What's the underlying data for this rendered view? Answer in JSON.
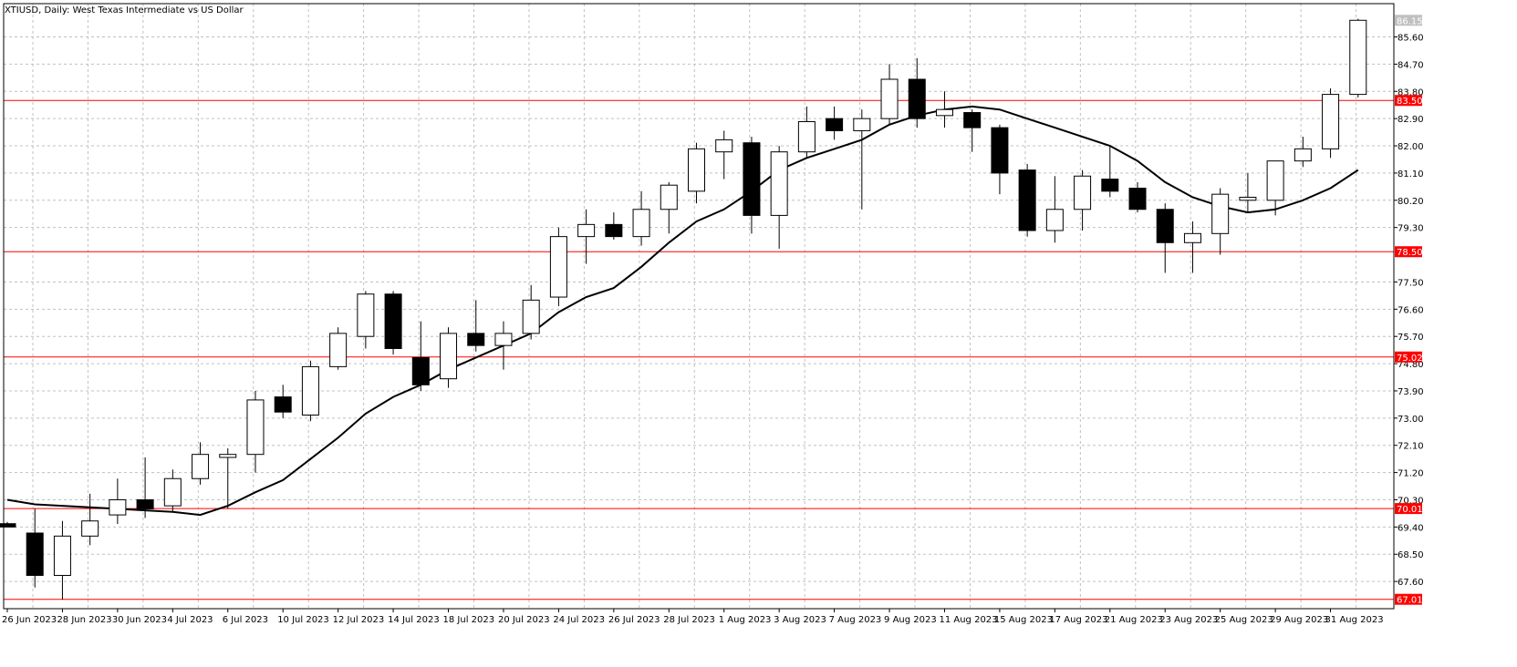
{
  "title": "XTIUSD, Daily:  West Texas Intermediate vs US Dollar",
  "colors": {
    "background": "#ffffff",
    "grid": "#c0c0c0",
    "candle_outline": "#000000",
    "bull_fill": "#ffffff",
    "bear_fill": "#000000",
    "ma_line": "#000000",
    "level_line": "#ff0000",
    "level_label_bg": "#ff0000",
    "current_label_bg": "#c0c0c0"
  },
  "chart_data": {
    "type": "candlestick",
    "symbol": "XTIUSD",
    "timeframe": "Daily",
    "ylim": [
      66.7,
      86.7
    ],
    "y_ticks": [
      "67.60",
      "68.50",
      "69.40",
      "70.30",
      "71.20",
      "72.10",
      "73.00",
      "73.90",
      "74.80",
      "75.70",
      "76.60",
      "77.50",
      "79.30",
      "80.20",
      "81.10",
      "82.00",
      "82.90",
      "83.80",
      "84.70",
      "85.60"
    ],
    "x_tick_labels": [
      {
        "i": 0,
        "label": "26 Jun 2023"
      },
      {
        "i": 2,
        "label": "28 Jun 2023"
      },
      {
        "i": 4,
        "label": "30 Jun 2023"
      },
      {
        "i": 6,
        "label": "4 Jul 2023"
      },
      {
        "i": 8,
        "label": "6 Jul 2023"
      },
      {
        "i": 10,
        "label": "10 Jul 2023"
      },
      {
        "i": 12,
        "label": "12 Jul 2023"
      },
      {
        "i": 14,
        "label": "14 Jul 2023"
      },
      {
        "i": 16,
        "label": "18 Jul 2023"
      },
      {
        "i": 18,
        "label": "20 Jul 2023"
      },
      {
        "i": 20,
        "label": "24 Jul 2023"
      },
      {
        "i": 22,
        "label": "26 Jul 2023"
      },
      {
        "i": 24,
        "label": "28 Jul 2023"
      },
      {
        "i": 26,
        "label": "1 Aug 2023"
      },
      {
        "i": 28,
        "label": "3 Aug 2023"
      },
      {
        "i": 30,
        "label": "7 Aug 2023"
      },
      {
        "i": 32,
        "label": "9 Aug 2023"
      },
      {
        "i": 34,
        "label": "11 Aug 2023"
      },
      {
        "i": 36,
        "label": "15 Aug 2023"
      },
      {
        "i": 38,
        "label": "17 Aug 2023"
      },
      {
        "i": 40,
        "label": "21 Aug 2023"
      },
      {
        "i": 42,
        "label": "23 Aug 2023"
      },
      {
        "i": 44,
        "label": "25 Aug 2023"
      },
      {
        "i": 46,
        "label": "29 Aug 2023"
      },
      {
        "i": 48,
        "label": "31 Aug 2023"
      }
    ],
    "candles": [
      {
        "o": 69.51,
        "h": 69.57,
        "l": 69.4,
        "c": 69.4
      },
      {
        "o": 69.2,
        "h": 70.0,
        "l": 67.4,
        "c": 67.8
      },
      {
        "o": 67.8,
        "h": 69.6,
        "l": 67.0,
        "c": 69.1
      },
      {
        "o": 69.1,
        "h": 70.5,
        "l": 68.8,
        "c": 69.6
      },
      {
        "o": 69.8,
        "h": 71.0,
        "l": 69.5,
        "c": 70.3
      },
      {
        "o": 70.3,
        "h": 71.7,
        "l": 69.7,
        "c": 70.0
      },
      {
        "o": 70.1,
        "h": 71.3,
        "l": 69.9,
        "c": 71.0
      },
      {
        "o": 71.0,
        "h": 72.2,
        "l": 70.8,
        "c": 71.8
      },
      {
        "o": 71.7,
        "h": 72.0,
        "l": 70.0,
        "c": 71.8
      },
      {
        "o": 71.8,
        "h": 73.9,
        "l": 71.2,
        "c": 73.6
      },
      {
        "o": 73.7,
        "h": 74.1,
        "l": 73.0,
        "c": 73.2
      },
      {
        "o": 73.1,
        "h": 74.9,
        "l": 72.9,
        "c": 74.7
      },
      {
        "o": 74.7,
        "h": 76.0,
        "l": 74.6,
        "c": 75.8
      },
      {
        "o": 75.7,
        "h": 77.2,
        "l": 75.3,
        "c": 77.1
      },
      {
        "o": 77.1,
        "h": 77.2,
        "l": 75.1,
        "c": 75.3
      },
      {
        "o": 75.0,
        "h": 76.2,
        "l": 73.9,
        "c": 74.1
      },
      {
        "o": 74.3,
        "h": 76.0,
        "l": 74.0,
        "c": 75.8
      },
      {
        "o": 75.8,
        "h": 76.9,
        "l": 75.2,
        "c": 75.4
      },
      {
        "o": 75.4,
        "h": 76.2,
        "l": 74.6,
        "c": 75.8
      },
      {
        "o": 75.8,
        "h": 77.4,
        "l": 75.6,
        "c": 76.9
      },
      {
        "o": 77.0,
        "h": 79.3,
        "l": 76.7,
        "c": 79.0
      },
      {
        "o": 79.0,
        "h": 79.9,
        "l": 78.1,
        "c": 79.4
      },
      {
        "o": 79.4,
        "h": 79.8,
        "l": 78.9,
        "c": 79.0
      },
      {
        "o": 79.0,
        "h": 80.5,
        "l": 78.7,
        "c": 79.9
      },
      {
        "o": 79.9,
        "h": 80.8,
        "l": 79.1,
        "c": 80.7
      },
      {
        "o": 80.5,
        "h": 82.1,
        "l": 80.1,
        "c": 81.9
      },
      {
        "o": 81.8,
        "h": 82.5,
        "l": 80.9,
        "c": 82.2
      },
      {
        "o": 82.1,
        "h": 82.3,
        "l": 79.1,
        "c": 79.7
      },
      {
        "o": 79.7,
        "h": 82.0,
        "l": 78.6,
        "c": 81.8
      },
      {
        "o": 81.8,
        "h": 83.3,
        "l": 81.6,
        "c": 82.8
      },
      {
        "o": 82.9,
        "h": 83.3,
        "l": 82.2,
        "c": 82.5
      },
      {
        "o": 82.5,
        "h": 83.2,
        "l": 79.9,
        "c": 82.9
      },
      {
        "o": 82.9,
        "h": 84.7,
        "l": 82.7,
        "c": 84.2
      },
      {
        "o": 84.2,
        "h": 84.9,
        "l": 82.6,
        "c": 82.9
      },
      {
        "o": 83.0,
        "h": 83.8,
        "l": 82.6,
        "c": 83.2
      },
      {
        "o": 83.1,
        "h": 83.2,
        "l": 81.8,
        "c": 82.6
      },
      {
        "o": 82.6,
        "h": 82.7,
        "l": 80.4,
        "c": 81.1
      },
      {
        "o": 81.2,
        "h": 81.4,
        "l": 79.0,
        "c": 79.2
      },
      {
        "o": 79.2,
        "h": 81.0,
        "l": 78.8,
        "c": 79.9
      },
      {
        "o": 79.9,
        "h": 81.2,
        "l": 79.2,
        "c": 81.0
      },
      {
        "o": 80.9,
        "h": 82.0,
        "l": 80.3,
        "c": 80.5
      },
      {
        "o": 80.6,
        "h": 80.8,
        "l": 79.8,
        "c": 79.9
      },
      {
        "o": 79.9,
        "h": 80.1,
        "l": 77.8,
        "c": 78.8
      },
      {
        "o": 78.8,
        "h": 79.5,
        "l": 77.8,
        "c": 79.1
      },
      {
        "o": 79.1,
        "h": 80.6,
        "l": 78.4,
        "c": 80.4
      },
      {
        "o": 80.2,
        "h": 81.1,
        "l": 79.8,
        "c": 80.3
      },
      {
        "o": 80.2,
        "h": 81.5,
        "l": 79.7,
        "c": 81.5
      },
      {
        "o": 81.5,
        "h": 82.3,
        "l": 81.3,
        "c": 81.9
      },
      {
        "o": 81.9,
        "h": 83.9,
        "l": 81.6,
        "c": 83.7
      },
      {
        "o": 83.7,
        "h": 86.2,
        "l": 83.6,
        "c": 86.15
      }
    ],
    "ma": [
      70.3,
      70.15,
      70.1,
      70.05,
      70.0,
      69.95,
      69.9,
      69.8,
      70.1,
      70.55,
      70.95,
      71.65,
      72.35,
      73.15,
      73.7,
      74.1,
      74.6,
      75.0,
      75.4,
      75.8,
      76.5,
      77.0,
      77.3,
      78.0,
      78.8,
      79.5,
      79.9,
      80.5,
      81.2,
      81.6,
      81.9,
      82.2,
      82.7,
      83.0,
      83.2,
      83.3,
      83.2,
      82.9,
      82.6,
      82.3,
      82.0,
      81.5,
      80.8,
      80.3,
      80.0,
      79.8,
      79.9,
      80.2,
      80.6,
      81.2
    ],
    "levels": [
      {
        "value": 83.5,
        "label": "83.50"
      },
      {
        "value": 78.5,
        "label": "78.50"
      },
      {
        "value": 75.02,
        "label": "75.02"
      },
      {
        "value": 70.01,
        "label": "70.01"
      },
      {
        "value": 67.01,
        "label": "67.01"
      }
    ],
    "current_price_label": "86.15"
  }
}
